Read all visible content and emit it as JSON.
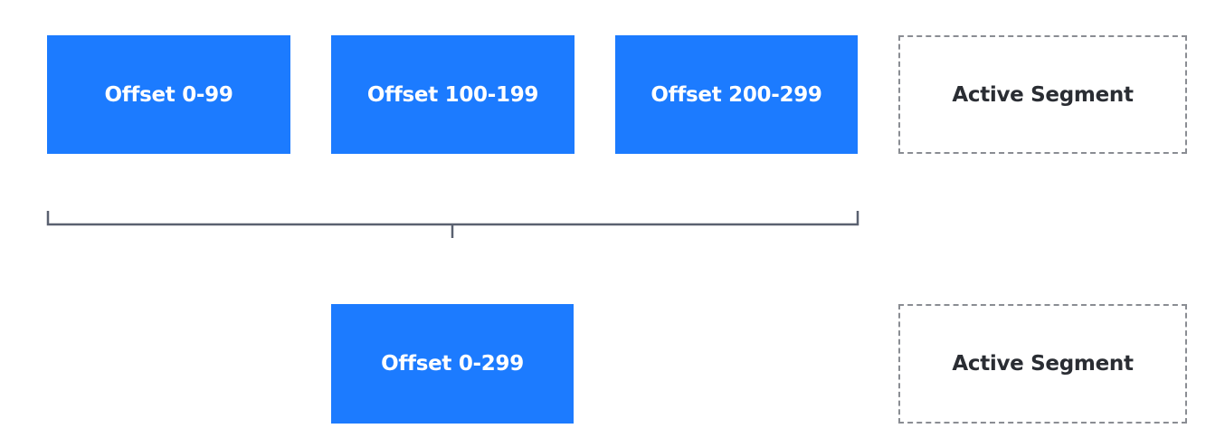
{
  "diagram": {
    "before": {
      "segments": [
        {
          "label": "Offset 0-99"
        },
        {
          "label": "Offset 100-199"
        },
        {
          "label": "Offset 200-299"
        }
      ],
      "active_segment": {
        "label": "Active Segment"
      }
    },
    "after": {
      "merged_segment": {
        "label": "Offset 0-299"
      },
      "active_segment": {
        "label": "Active Segment"
      }
    },
    "colors": {
      "segment_fill": "#1c7bff",
      "segment_text": "#ffffff",
      "active_border": "#8a8d93",
      "active_text": "#2a2d33",
      "bracket": "#5a6170"
    }
  }
}
